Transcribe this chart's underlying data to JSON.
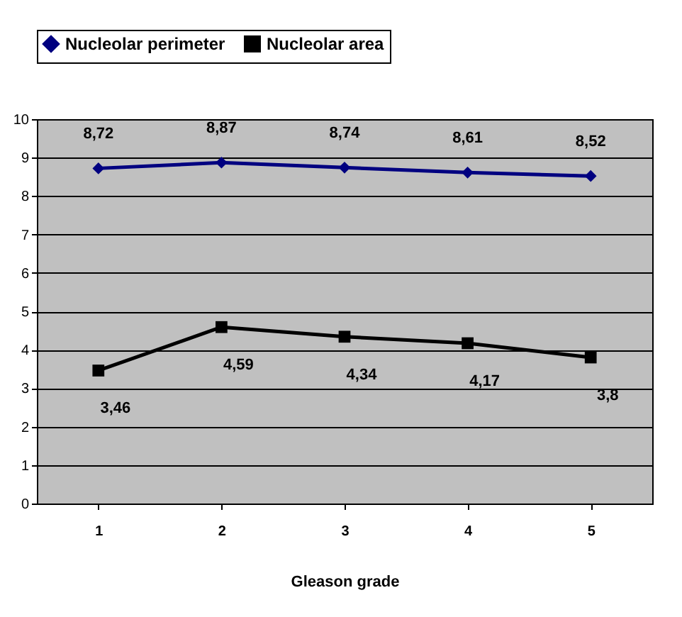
{
  "chart_data": {
    "type": "line",
    "categories": [
      "1",
      "2",
      "3",
      "4",
      "5"
    ],
    "series": [
      {
        "name": "Nucleolar perimeter",
        "color": "#000080",
        "marker": "diamond",
        "values": [
          8.72,
          8.87,
          8.74,
          8.61,
          8.52
        ],
        "value_labels": [
          "8,72",
          "8,87",
          "8,74",
          "8,61",
          "8,52"
        ]
      },
      {
        "name": "Nucleolar area",
        "color": "#000000",
        "marker": "square",
        "values": [
          3.46,
          4.59,
          4.34,
          4.17,
          3.8
        ],
        "value_labels": [
          "3,46",
          "4,59",
          "4,34",
          "4,17",
          "3,8"
        ]
      }
    ],
    "xlabel": "Gleason grade",
    "ylim": [
      0,
      10
    ],
    "yticks": [
      0,
      1,
      2,
      3,
      4,
      5,
      6,
      7,
      8,
      9,
      10
    ],
    "grid": "y",
    "legend": "top",
    "line_style": "solid"
  }
}
